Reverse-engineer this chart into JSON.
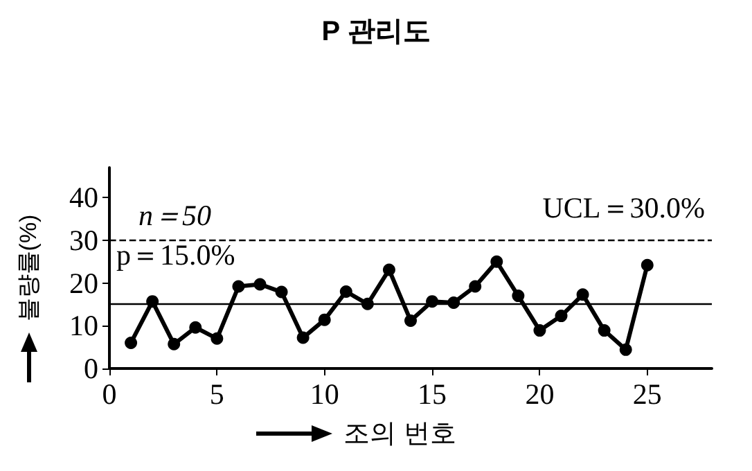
{
  "chart_data": {
    "type": "line",
    "title": "P 관리도",
    "xlabel": "조의 번호",
    "ylabel": "불량률(%)",
    "x": [
      1,
      2,
      3,
      4,
      5,
      6,
      7,
      8,
      9,
      10,
      11,
      12,
      13,
      14,
      15,
      16,
      17,
      18,
      19,
      20,
      21,
      22,
      23,
      24,
      25
    ],
    "series": [
      {
        "color": "#000000",
        "values": [
          6,
          15.7,
          5.7,
          9.6,
          7,
          19.2,
          19.7,
          17.9,
          7.2,
          11.4,
          18,
          15.1,
          23.1,
          11.2,
          15.7,
          15.4,
          19.2,
          25,
          17,
          8.9,
          12.3,
          17.3,
          8.9,
          4.4,
          24.2
        ]
      }
    ],
    "xlim": [
      0,
      28
    ],
    "xticks": [
      0,
      5,
      10,
      15,
      20,
      25
    ],
    "ylim": [
      0,
      47
    ],
    "yticks": [
      0,
      10,
      20,
      30,
      40
    ],
    "ref_lines": [
      {
        "axis": "y",
        "value": 30,
        "label": "UCL＝30.0%",
        "line_style": "dashed"
      },
      {
        "axis": "y",
        "value": 15,
        "label": "p＝15.0%",
        "line_style": "solid"
      }
    ],
    "annotations": [
      "n＝50"
    ],
    "grid": false,
    "marker": "circle",
    "line_style": "solid"
  }
}
